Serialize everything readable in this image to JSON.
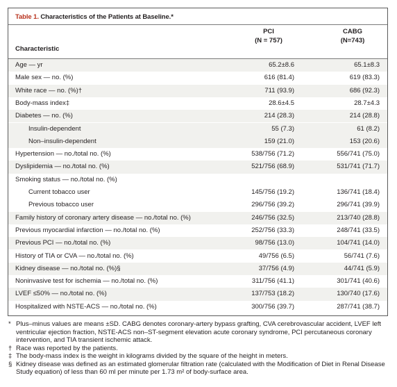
{
  "table": {
    "title_num": "Table 1.",
    "title_text": "Characteristics of the Patients at Baseline.*",
    "col_char": "Characteristic",
    "col_pci_line1": "PCI",
    "col_pci_line2": "(N = 757)",
    "col_cabg_line1": "CABG",
    "col_cabg_line2": "(N=743)",
    "rows": [
      {
        "label": "Age — yr",
        "pci": "65.2±8.6",
        "cabg": "65.1±8.3"
      },
      {
        "label": "Male sex — no. (%)",
        "pci": "616 (81.4)",
        "cabg": "619 (83.3)"
      },
      {
        "label": "White race — no. (%)†",
        "pci": "711 (93.9)",
        "cabg": "686 (92.3)"
      },
      {
        "label": "Body-mass index‡",
        "pci": "28.6±4.5",
        "cabg": "28.7±4.3"
      },
      {
        "label": "Diabetes — no. (%)",
        "pci": "214 (28.3)",
        "cabg": "214 (28.8)"
      },
      {
        "label": "Insulin-dependent",
        "pci": "55 (7.3)",
        "cabg": "61 (8.2)"
      },
      {
        "label": "Non–insulin-dependent",
        "pci": "159 (21.0)",
        "cabg": "153 (20.6)"
      },
      {
        "label": "Hypertension — no./total no. (%)",
        "pci": "538/756 (71.2)",
        "cabg": "556/741 (75.0)"
      },
      {
        "label": "Dyslipidemia — no./total no. (%)",
        "pci": "521/756 (68.9)",
        "cabg": "531/741 (71.7)"
      },
      {
        "label": "Smoking status — no./total no. (%)",
        "pci": "",
        "cabg": ""
      },
      {
        "label": "Current tobacco user",
        "pci": "145/756 (19.2)",
        "cabg": "136/741 (18.4)"
      },
      {
        "label": "Previous tobacco user",
        "pci": "296/756 (39.2)",
        "cabg": "296/741 (39.9)"
      },
      {
        "label": "Family history of coronary artery disease — no./total no. (%)",
        "pci": "246/756 (32.5)",
        "cabg": "213/740 (28.8)"
      },
      {
        "label": "Previous myocardial infarction — no./total no. (%)",
        "pci": "252/756 (33.3)",
        "cabg": "248/741 (33.5)"
      },
      {
        "label": "Previous PCI — no./total no. (%)",
        "pci": "98/756 (13.0)",
        "cabg": "104/741 (14.0)"
      },
      {
        "label": "History of TIA or CVA — no./total no. (%)",
        "pci": "49/756 (6.5)",
        "cabg": "56/741 (7.6)"
      },
      {
        "label": "Kidney disease — no./total no. (%)§",
        "pci": "37/756 (4.9)",
        "cabg": "44/741 (5.9)"
      },
      {
        "label": "Noninvasive test for ischemia — no./total no. (%)",
        "pci": "311/756 (41.1)",
        "cabg": "301/741 (40.6)"
      },
      {
        "label": "LVEF ≤50% — no./total no. (%)",
        "pci": "137/753 (18.2)",
        "cabg": "130/740 (17.6)"
      },
      {
        "label": "Hospitalized with NSTE-ACS — no./total no. (%)",
        "pci": "300/756 (39.7)",
        "cabg": "287/741 (38.7)"
      }
    ]
  },
  "footnotes": [
    {
      "mark": "*",
      "text": "Plus–minus values are means ±SD. CABG denotes coronary-artery bypass grafting, CVA cerebrovascular accident, LVEF left ventricular ejection fraction, NSTE-ACS non–ST-segment elevation acute coronary syndrome, PCI percutaneous coronary intervention, and TIA transient ischemic attack."
    },
    {
      "mark": "†",
      "text": "Race was reported by the patients."
    },
    {
      "mark": "‡",
      "text": "The body-mass index is the weight in kilograms divided by the square of the height in meters."
    },
    {
      "mark": "§",
      "text": "Kidney disease was defined as an estimated glomerular filtration rate (calculated with the Modification of Diet in Renal Disease Study equation) of less than 60 ml per minute per 1.73 m² of body-surface area."
    }
  ]
}
